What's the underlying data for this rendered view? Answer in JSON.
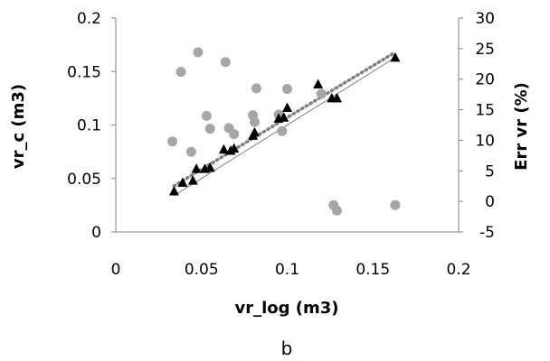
{
  "chart_data": {
    "type": "scatter",
    "caption": "b",
    "xlabel": "vr_log (m3)",
    "ylabel": "vr_c (m3)",
    "y2label": "Err vr (%)",
    "xlim": [
      0,
      0.2
    ],
    "ylim": [
      0,
      0.2
    ],
    "y2lim": [
      -5,
      30
    ],
    "x_ticks": [
      "0",
      "0.05",
      "0.1",
      "0.15",
      "0.2"
    ],
    "y_ticks": [
      "0",
      "0.05",
      "0.1",
      "0.15",
      "0.2"
    ],
    "y2_ticks": [
      "-5",
      "0",
      "5",
      "10",
      "15",
      "20",
      "25",
      "30"
    ],
    "grid": false,
    "colors": {
      "triangles": "#000000",
      "circles": "#a6a6a6",
      "dotted_trend": "#808080",
      "identity_line": "#808080",
      "axes": "#808080"
    },
    "series": [
      {
        "marker": "triangle",
        "axis": "left",
        "x": [
          0.034,
          0.039,
          0.045,
          0.047,
          0.052,
          0.055,
          0.063,
          0.067,
          0.069,
          0.08,
          0.081,
          0.095,
          0.098,
          0.1,
          0.118,
          0.126,
          0.129,
          0.163
        ],
        "y": [
          0.038,
          0.046,
          0.048,
          0.059,
          0.059,
          0.06,
          0.077,
          0.076,
          0.078,
          0.09,
          0.093,
          0.106,
          0.107,
          0.116,
          0.138,
          0.125,
          0.125,
          0.163
        ]
      },
      {
        "marker": "circle",
        "axis": "right",
        "x": [
          0.033,
          0.038,
          0.044,
          0.048,
          0.053,
          0.055,
          0.064,
          0.066,
          0.069,
          0.08,
          0.081,
          0.082,
          0.095,
          0.097,
          0.1,
          0.12,
          0.127,
          0.129,
          0.163
        ],
        "y": [
          9.8,
          21.2,
          8.1,
          24.4,
          14.0,
          11.9,
          22.8,
          12.0,
          11.0,
          14.1,
          13.0,
          18.5,
          14.2,
          11.5,
          18.4,
          17.6,
          -0.6,
          -1.5,
          -0.6
        ]
      }
    ],
    "trend_dotted": {
      "x": [
        0.034,
        0.163
      ],
      "y": [
        0.043,
        0.168
      ]
    },
    "identity_line": {
      "x": [
        0.034,
        0.163
      ],
      "y": [
        0.034,
        0.163
      ]
    }
  }
}
